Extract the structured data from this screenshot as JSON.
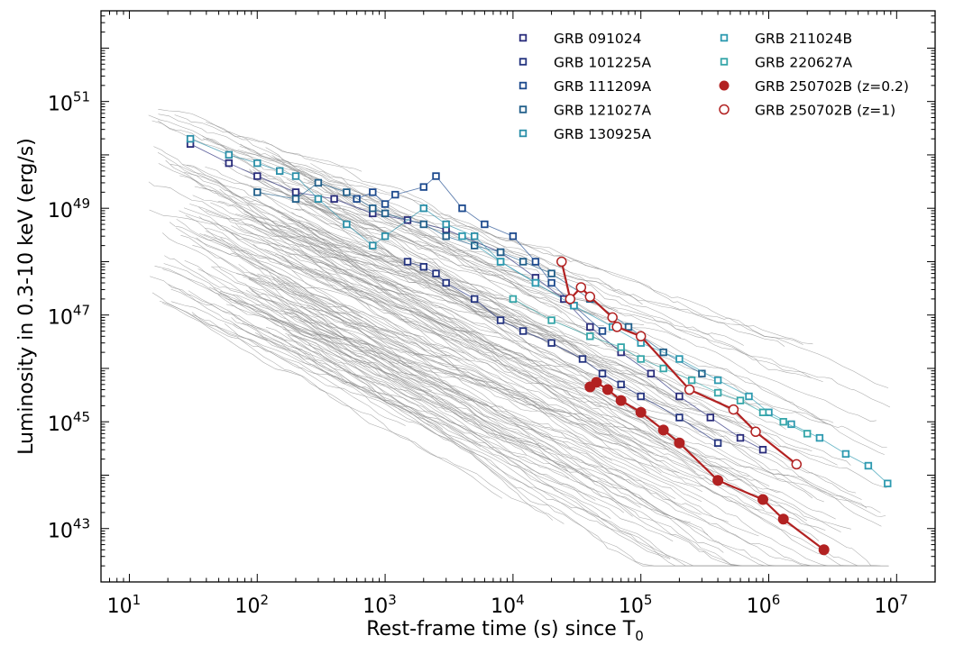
{
  "chart_data": {
    "type": "scatter",
    "xscale": "log",
    "yscale": "log",
    "xlim": [
      6,
      20000000
    ],
    "ylim": [
      1e+42,
      5e+52
    ],
    "xlabel": "Rest-frame time (s) since T",
    "xlabel_subscript": "0",
    "ylabel": "Luminosity in 0.3-10 keV (erg/s)",
    "x_ticks": [
      {
        "base": "10",
        "exp": "1",
        "value": 10
      },
      {
        "base": "10",
        "exp": "2",
        "value": 100
      },
      {
        "base": "10",
        "exp": "3",
        "value": 1000
      },
      {
        "base": "10",
        "exp": "4",
        "value": 10000
      },
      {
        "base": "10",
        "exp": "5",
        "value": 100000
      },
      {
        "base": "10",
        "exp": "6",
        "value": 1000000
      },
      {
        "base": "10",
        "exp": "7",
        "value": 10000000
      }
    ],
    "y_ticks": [
      {
        "base": "10",
        "exp": "43",
        "value": 1e+43
      },
      {
        "base": "10",
        "exp": "45",
        "value": 1e+45
      },
      {
        "base": "10",
        "exp": "47",
        "value": 1e+47
      },
      {
        "base": "10",
        "exp": "49",
        "value": 1e+49
      },
      {
        "base": "10",
        "exp": "51",
        "value": 1e+51
      }
    ],
    "legend_position": "top-right",
    "background_population": {
      "name": "Swift GRB sample",
      "color": "#8c8c8c",
      "style": "thin lines",
      "note": "hundreds of individual light curves, not individually labeled"
    },
    "series": [
      {
        "name": "GRB 091024",
        "color": "#2a2d7c",
        "marker": "open-square",
        "x": [
          30,
          60,
          100,
          200,
          400,
          800,
          1500,
          3000,
          8000,
          15000,
          25000,
          40000,
          70000,
          120000,
          200000,
          350000,
          600000,
          900000
        ],
        "y": [
          1.6e+50,
          7e+49,
          4e+49,
          2e+49,
          1.5e+49,
          8e+48,
          6e+48,
          4e+48,
          1.5e+48,
          5e+47,
          2e+47,
          6e+46,
          2e+46,
          8e+45,
          3e+45,
          1.2e+45,
          5e+44,
          3e+44
        ]
      },
      {
        "name": "GRB 101225A",
        "color": "#24347f",
        "marker": "open-square",
        "x": [
          1500,
          2000,
          2500,
          3000,
          5000,
          8000,
          12000,
          20000,
          35000,
          50000,
          70000,
          100000,
          200000,
          400000
        ],
        "y": [
          1e+48,
          8e+47,
          6e+47,
          4e+47,
          2e+47,
          8e+46,
          5e+46,
          3e+46,
          1.5e+46,
          8e+45,
          5e+45,
          3e+45,
          1.2e+45,
          4e+44
        ]
      },
      {
        "name": "GRB 111209A",
        "color": "#1d4a8e",
        "marker": "open-square",
        "x": [
          600,
          800,
          1000,
          1200,
          2000,
          2500,
          4000,
          6000,
          10000,
          15000,
          20000,
          30000,
          50000
        ],
        "y": [
          1.5e+49,
          2e+49,
          1.2e+49,
          1.8e+49,
          2.5e+49,
          4e+49,
          1e+49,
          5e+48,
          3e+48,
          1e+48,
          4e+47,
          1.5e+47,
          5e+46
        ]
      },
      {
        "name": "GRB 121027A",
        "color": "#215f8a",
        "marker": "open-square",
        "x": [
          100,
          200,
          300,
          500,
          800,
          1000,
          2000,
          3000,
          5000,
          8000,
          12000,
          20000,
          40000,
          80000,
          150000,
          300000
        ],
        "y": [
          2e+49,
          1.5e+49,
          3e+49,
          2e+49,
          1e+49,
          8e+48,
          5e+48,
          3e+48,
          2e+48,
          1.5e+48,
          1e+48,
          6e+47,
          2e+47,
          6e+46,
          2e+46,
          8e+45
        ]
      },
      {
        "name": "GRB 130925A",
        "color": "#2a8fa8",
        "marker": "open-square",
        "x": [
          30,
          60,
          100,
          150,
          200,
          300,
          500,
          800,
          1000,
          2000,
          3000,
          5000,
          8000,
          15000
        ],
        "y": [
          2e+50,
          1e+50,
          7e+49,
          5e+49,
          4e+49,
          1.5e+49,
          5e+48,
          2e+48,
          3e+48,
          1e+49,
          5e+48,
          3e+48,
          1e+48,
          4e+47
        ]
      },
      {
        "name": "GRB 211024B",
        "color": "#2d9ab0",
        "marker": "open-square",
        "x": [
          4000,
          8000,
          15000,
          30000,
          60000,
          100000,
          200000,
          400000,
          700000,
          1000000,
          1500000,
          2500000,
          4000000,
          6000000,
          8500000
        ],
        "y": [
          3e+48,
          1e+48,
          4e+47,
          1.5e+47,
          6e+46,
          3e+46,
          1.5e+46,
          6e+45,
          3e+45,
          1.5e+45,
          9e+44,
          5e+44,
          2.5e+44,
          1.5e+44,
          7e+43
        ]
      },
      {
        "name": "GRB 220627A",
        "color": "#35a6a9",
        "marker": "open-square",
        "x": [
          10000,
          20000,
          40000,
          70000,
          100000,
          150000,
          250000,
          400000,
          600000,
          900000,
          1300000,
          2000000
        ],
        "y": [
          2e+47,
          8e+46,
          4e+46,
          2.5e+46,
          1.5e+46,
          1e+46,
          6e+45,
          3.5e+45,
          2.5e+45,
          1.5e+45,
          1e+45,
          6e+44
        ]
      },
      {
        "name": "GRB 250702B (z=0.2)",
        "color": "#b22222",
        "marker": "filled-circle",
        "x": [
          40000,
          45000,
          55000,
          70000,
          100000,
          150000,
          200000,
          400000,
          900000,
          1300000,
          2700000
        ],
        "y": [
          4.5e+45,
          5.5e+45,
          4e+45,
          2.5e+45,
          1.5e+45,
          7e+44,
          4e+44,
          8e+43,
          3.5e+43,
          1.5e+43,
          4e+42
        ]
      },
      {
        "name": "GRB 250702B (z=1)",
        "color": "#b22222",
        "marker": "open-circle",
        "x": [
          24000,
          28000,
          34000,
          40000,
          60000,
          65000,
          100000,
          240000,
          530000,
          790000,
          1650000
        ],
        "y": [
          1e+48,
          2e+47,
          3.3e+47,
          2.2e+47,
          9e+46,
          6e+46,
          4e+46,
          4e+45,
          1.7e+45,
          6.5e+44,
          1.6e+44
        ]
      }
    ]
  }
}
